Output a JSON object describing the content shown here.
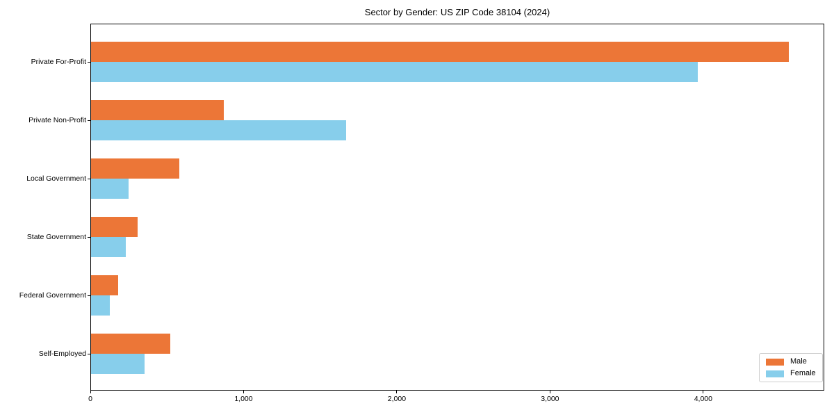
{
  "chart_data": {
    "type": "bar",
    "orientation": "horizontal",
    "title": "Sector by Gender: US ZIP Code 38104 (2024)",
    "categories": [
      "Private For-Profit",
      "Private Non-Profit",
      "Local Government",
      "State Government",
      "Federal Government",
      "Self-Employed"
    ],
    "series": [
      {
        "name": "Male",
        "color": "#ec7637",
        "values": [
          4560,
          870,
          580,
          310,
          180,
          520
        ]
      },
      {
        "name": "Female",
        "color": "#87ceeb",
        "values": [
          3965,
          1670,
          250,
          230,
          125,
          355
        ]
      }
    ],
    "xlabel": "",
    "ylabel": "",
    "xlim": [
      0,
      4790
    ],
    "xticks": [
      0,
      1000,
      2000,
      3000,
      4000
    ],
    "xtick_labels": [
      "0",
      "1,000",
      "2,000",
      "3,000",
      "4,000"
    ],
    "grid": false,
    "legend": {
      "position": "lower right",
      "entries": [
        "Male",
        "Female"
      ]
    }
  }
}
